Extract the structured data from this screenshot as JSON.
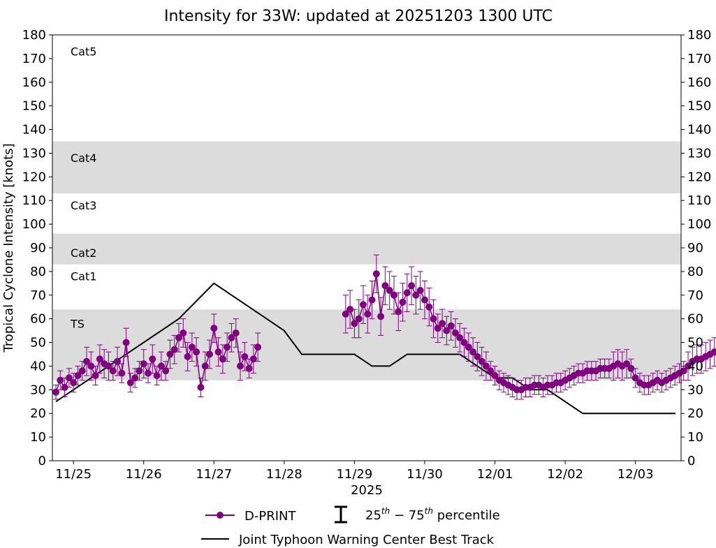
{
  "chart_data": {
    "type": "line",
    "title": "Intensity for 33W: updated at 20251203 1300 UTC",
    "ylabel": "Tropical Cyclone Intensity [knots]",
    "xlabel": "2025",
    "ylim": [
      0,
      180
    ],
    "xlim_days": [
      -0.3,
      8.65
    ],
    "y_ticks": [
      0,
      10,
      20,
      30,
      40,
      50,
      60,
      70,
      80,
      90,
      100,
      110,
      120,
      130,
      140,
      150,
      160,
      170,
      180
    ],
    "x_ticks": [
      {
        "day": 0,
        "label": "11/25"
      },
      {
        "day": 1,
        "label": "11/26"
      },
      {
        "day": 2,
        "label": "11/27"
      },
      {
        "day": 3,
        "label": "11/28"
      },
      {
        "day": 4,
        "label": "11/29"
      },
      {
        "day": 5,
        "label": "11/30"
      },
      {
        "day": 6,
        "label": "12/01"
      },
      {
        "day": 7,
        "label": "12/02"
      },
      {
        "day": 8,
        "label": "12/03"
      }
    ],
    "bands": [
      {
        "label": "TS",
        "from": 34,
        "to": 64,
        "color": "#dcdcdc",
        "label_y": 58
      },
      {
        "label": "Cat1",
        "from": 64,
        "to": 83,
        "color": "#ffffff",
        "label_y": 78
      },
      {
        "label": "Cat2",
        "from": 83,
        "to": 96,
        "color": "#dcdcdc",
        "label_y": 88
      },
      {
        "label": "Cat3",
        "from": 96,
        "to": 113,
        "color": "#ffffff",
        "label_y": 108
      },
      {
        "label": "Cat4",
        "from": 113,
        "to": 135,
        "color": "#dcdcdc",
        "label_y": 128
      },
      {
        "label": "Cat5",
        "from": 135,
        "to": 180,
        "color": "#ffffff",
        "label_y": 173
      }
    ],
    "legend": {
      "dprint_label": "D-PRINT",
      "percentile_label": "25th − 75th percentile",
      "besttrack_label": "Joint Typhoon Warning Center Best Track"
    },
    "series": [
      {
        "name": "D-PRINT",
        "color": "#800080",
        "x_start": -0.25,
        "x_step": 0.0625,
        "values": [
          29,
          34,
          31,
          35,
          33,
          36,
          38,
          42,
          40,
          36,
          43,
          41,
          40,
          38,
          42,
          37,
          50,
          33,
          35,
          38,
          41,
          37,
          43,
          36,
          40,
          38,
          45,
          47,
          52,
          54,
          44,
          48,
          46,
          31,
          40,
          45,
          56,
          46,
          43,
          48,
          52,
          54,
          40,
          44,
          39,
          43,
          48,
          null,
          null,
          null,
          null,
          null,
          null,
          null,
          null,
          null,
          null,
          null,
          null,
          null,
          null,
          null,
          null,
          null,
          null,
          null,
          62,
          64,
          58,
          60,
          66,
          62,
          68,
          79,
          61,
          74,
          72,
          70,
          63,
          67,
          71,
          74,
          70,
          72,
          68,
          65,
          60,
          56,
          58,
          55,
          57,
          54,
          52,
          50,
          48,
          46,
          44,
          42,
          40,
          38,
          36,
          34,
          33,
          32,
          31,
          30,
          30,
          31,
          31,
          32,
          32,
          31,
          32,
          32,
          33,
          33,
          34,
          35,
          36,
          37,
          37,
          38,
          38,
          38,
          39,
          39,
          39,
          40,
          41,
          40,
          41,
          39,
          35,
          33,
          32,
          32,
          33,
          34,
          33,
          34,
          35,
          36,
          37,
          38,
          40,
          42,
          43,
          43,
          44,
          45,
          46,
          46,
          45,
          44,
          43,
          42,
          41,
          40,
          40,
          41,
          42,
          43,
          42,
          40,
          38,
          36,
          35,
          33,
          32,
          31,
          30,
          29,
          29,
          28,
          28,
          28,
          28,
          27,
          27,
          27,
          26,
          26,
          26,
          25,
          25,
          24,
          24,
          24,
          23,
          23,
          24,
          25,
          25,
          26,
          26,
          26,
          27,
          27,
          26,
          26,
          26,
          26,
          26,
          26,
          25,
          24,
          24,
          24,
          24,
          23,
          23,
          23,
          24,
          24,
          24,
          25,
          25,
          25,
          25,
          25,
          25,
          25,
          25,
          25,
          25,
          24,
          24,
          null,
          null,
          25,
          25,
          25,
          26,
          26,
          26,
          26,
          25,
          25,
          25,
          25
        ]
      },
      {
        "name": "Joint Typhoon Warning Center Best Track",
        "color": "#000000",
        "x": [
          -0.25,
          0.5,
          1.5,
          2.0,
          2.5,
          3.0,
          3.25,
          3.5,
          4.0,
          4.25,
          4.5,
          4.75,
          5.0,
          5.5,
          5.75,
          6.0,
          6.25,
          6.5,
          6.75,
          7.0,
          7.25,
          7.5,
          8.0,
          8.25,
          8.5,
          8.57
        ],
        "values": [
          25,
          40,
          60,
          75,
          65,
          55,
          45,
          45,
          45,
          40,
          40,
          45,
          45,
          45,
          40,
          35,
          35,
          30,
          30,
          25,
          20,
          20,
          20,
          20,
          20,
          20
        ]
      }
    ]
  }
}
